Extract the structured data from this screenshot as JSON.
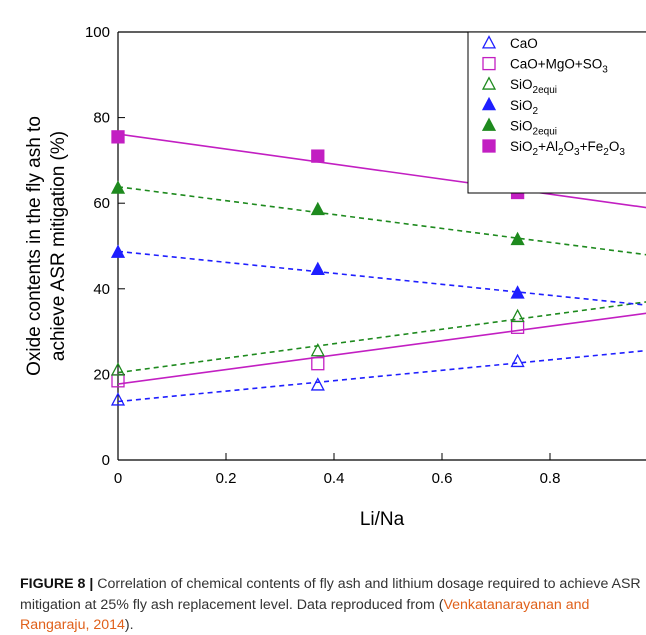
{
  "chart_data": {
    "type": "scatter",
    "xlabel": "Li/Na",
    "ylabel": [
      "Oxide contents in the fly ash to",
      "achieve ASR mitigation (%)"
    ],
    "x": [
      0,
      0.37,
      0.74
    ],
    "xlim": [
      0,
      1
    ],
    "xticks": [
      0,
      0.2,
      0.4,
      0.6,
      0.8
    ],
    "ylim": [
      0,
      100
    ],
    "yticks": [
      0,
      20,
      40,
      60,
      80,
      100
    ],
    "legend": "upper right",
    "series": [
      {
        "name": "CaO",
        "color": "#1f1fff",
        "marker": "triangle",
        "filled": false,
        "fit": "dashed",
        "values": [
          14,
          17.5,
          23
        ]
      },
      {
        "name": "CaO+MgO+SO3",
        "color": "#c21fc2",
        "marker": "square",
        "filled": false,
        "fit": "solid",
        "values": [
          18.5,
          22.5,
          31
        ]
      },
      {
        "name": "SiO2equi",
        "color": "#1e8a1e",
        "marker": "triangle",
        "filled": false,
        "fit": "dashed",
        "values": [
          21,
          25.5,
          33.5
        ]
      },
      {
        "name": "SiO2",
        "color": "#1f1fff",
        "marker": "triangle",
        "filled": true,
        "fit": "dashed",
        "values": [
          48.5,
          44.5,
          39
        ]
      },
      {
        "name": "SiO2equi",
        "color": "#1e8a1e",
        "marker": "triangle",
        "filled": true,
        "fit": "dashed",
        "values": [
          63.5,
          58.5,
          51.5
        ]
      },
      {
        "name": "SiO2+Al2O3+Fe2O3",
        "color": "#c21fc2",
        "marker": "square",
        "filled": true,
        "fit": "solid",
        "values": [
          75.5,
          71,
          62.5
        ]
      }
    ]
  },
  "caption": {
    "label": "FIGURE 8 |",
    "text": "Correlation of chemical contents of fly ash and lithium dosage required to achieve ASR mitigation at 25% fly ash replacement level. Data reproduced from (",
    "citation": "Venkatanarayanan and Rangaraju, 2014",
    "end": ")."
  }
}
